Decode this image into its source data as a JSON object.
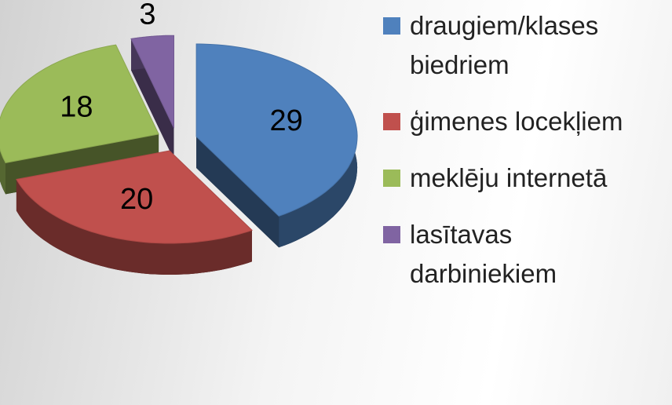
{
  "chart_data": {
    "type": "pie",
    "categories": [
      "draugiem/klases biedriem",
      "ģimenes locekļiem",
      "meklēju internetā",
      "lasītavas darbiniekiem"
    ],
    "values": [
      29,
      20,
      18,
      3
    ],
    "colors": [
      "#4f81bd",
      "#c0504d",
      "#9bbb59",
      "#8064a2"
    ],
    "legend": "right"
  }
}
